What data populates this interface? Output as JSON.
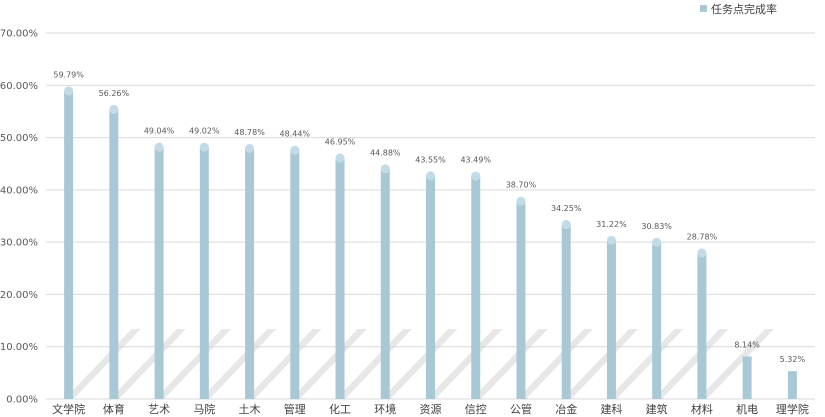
{
  "chart_data": {
    "type": "bar",
    "categories": [
      "文学院",
      "体育",
      "艺术",
      "马院",
      "土木",
      "管理",
      "化工",
      "环境",
      "资源",
      "信控",
      "公管",
      "冶金",
      "建科",
      "建筑",
      "材料",
      "机电",
      "理学院"
    ],
    "series": [
      {
        "name": "任务点完成率",
        "values": [
          59.79,
          56.26,
          49.04,
          49.02,
          48.78,
          48.44,
          46.95,
          44.88,
          43.55,
          43.49,
          38.7,
          34.25,
          31.22,
          30.83,
          28.78,
          8.14,
          5.32
        ],
        "labels": [
          "59.79%",
          "56.26%",
          "49.04%",
          "49.02%",
          "48.78%",
          "48.44%",
          "46.95%",
          "44.88%",
          "43.55%",
          "43.49%",
          "38.70%",
          "34.25%",
          "31.22%",
          "30.83%",
          "28.78%",
          "8.14%",
          "5.32%"
        ]
      }
    ],
    "y_ticks": [
      "0.00%",
      "10.00%",
      "20.00%",
      "30.00%",
      "40.00%",
      "50.00%",
      "60.00%",
      "70.00%"
    ],
    "ylim": [
      0,
      70
    ],
    "grid": true,
    "legend_position": "top-right",
    "colors": {
      "bar": "#a9c8d6",
      "bar_top": "#c3dbe6",
      "grid": "#d9d9d9",
      "shadow": "#d4d4d4"
    }
  }
}
